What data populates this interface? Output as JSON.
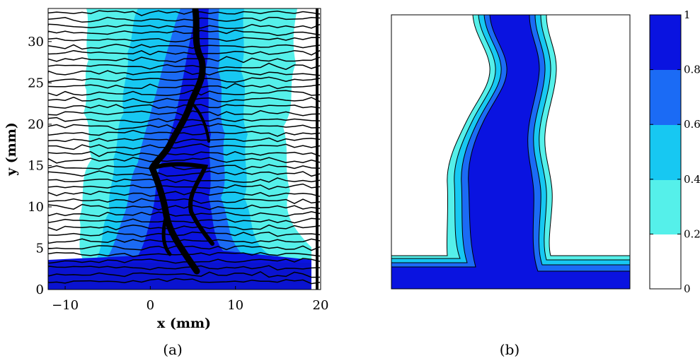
{
  "panel_a": {
    "caption": "(a)",
    "xlabel": "x (mm)",
    "ylabel": "y (mm)",
    "x_ticks": [
      {
        "value": -10,
        "label": "−10"
      },
      {
        "value": 0,
        "label": "0"
      },
      {
        "value": 10,
        "label": "10"
      },
      {
        "value": 20,
        "label": "20"
      }
    ],
    "y_ticks": [
      {
        "value": 0,
        "label": "0"
      },
      {
        "value": 5,
        "label": "5"
      },
      {
        "value": 10,
        "label": "10"
      },
      {
        "value": 15,
        "label": "15"
      },
      {
        "value": 20,
        "label": "20"
      },
      {
        "value": 25,
        "label": "25"
      },
      {
        "value": 30,
        "label": "30"
      }
    ],
    "xlim": [
      -12,
      20
    ],
    "ylim": [
      0,
      34
    ]
  },
  "panel_b": {
    "caption": "(b)"
  },
  "colorbar": {
    "ticks": [
      "0",
      "0.2",
      "0.4",
      "0.6",
      "0.8",
      "1"
    ]
  },
  "colors": {
    "level_0": "#ffffff",
    "level_1": "#55f0ea",
    "level_2": "#17c8f2",
    "level_3": "#1b6bf5",
    "level_4": "#0a13e0",
    "contour": "#000000"
  }
}
